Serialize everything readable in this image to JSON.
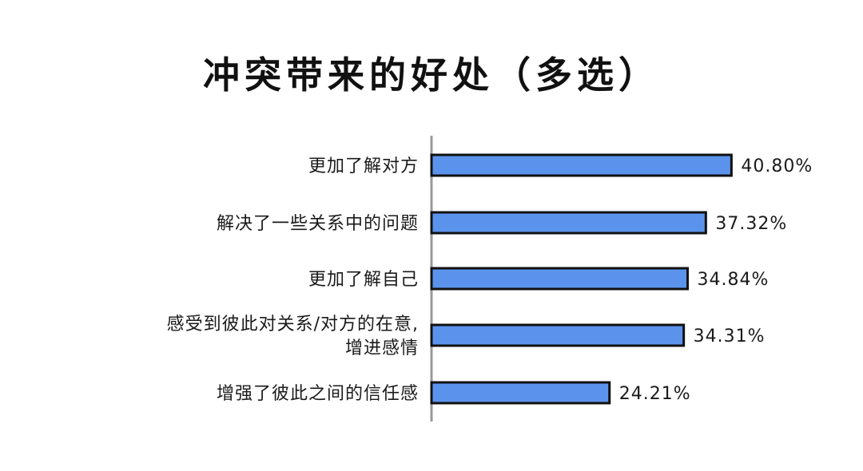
{
  "chart_data": {
    "type": "bar",
    "orientation": "horizontal",
    "title": "冲突带来的好处（多选）",
    "categories": [
      [
        "更加了解对方"
      ],
      [
        "解决了一些关系中的问题"
      ],
      [
        "更加了解自己"
      ],
      [
        "感受到彼此对关系/对方的在意,",
        "增进感情"
      ],
      [
        "增强了彼此之间的信任感"
      ]
    ],
    "values": [
      40.8,
      37.32,
      34.84,
      34.31,
      24.21
    ],
    "value_labels": [
      "40.80%",
      "37.32%",
      "34.84%",
      "34.31%",
      "24.21%"
    ],
    "unit": "%",
    "xlim": [
      0,
      50
    ],
    "bar_color": "#5b93ec",
    "bar_edge_color": "#111111",
    "axis_color": "#999999",
    "grid": false,
    "legend": "none"
  }
}
